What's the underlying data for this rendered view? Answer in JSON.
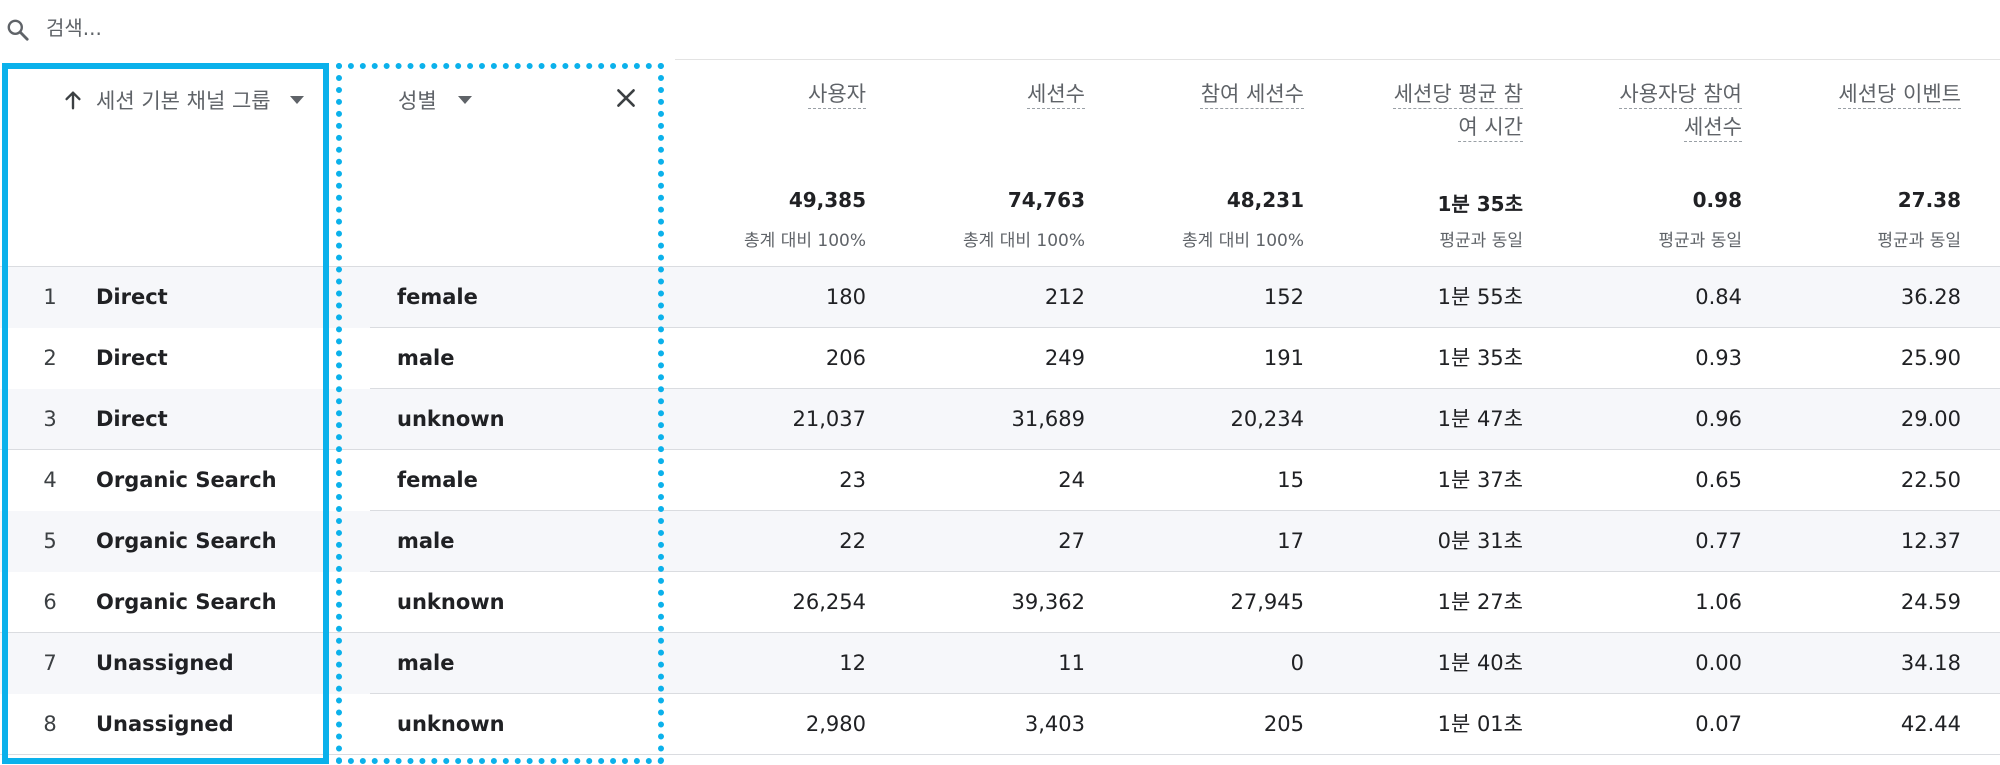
{
  "search": {
    "placeholder": "검색..."
  },
  "dimensions": {
    "primary": {
      "label": "세션 기본 채널 그룹"
    },
    "secondary": {
      "label": "성별"
    }
  },
  "metrics": [
    {
      "label": "사용자",
      "total": "49,385",
      "sub": "총계 대비 100%"
    },
    {
      "label": "세션수",
      "total": "74,763",
      "sub": "총계 대비 100%"
    },
    {
      "label": "참여 세션수",
      "total": "48,231",
      "sub": "총계 대비 100%"
    },
    {
      "label_line1": "세션당 평균 참",
      "label_line2": "여 시간",
      "total": "1분 35초",
      "sub": "평균과 동일"
    },
    {
      "label_line1": "사용자당 참여",
      "label_line2": "세션수",
      "total": "0.98",
      "sub": "평균과 동일"
    },
    {
      "label": "세션당 이벤트",
      "total": "27.38",
      "sub": "평균과 동일"
    }
  ],
  "rows": [
    {
      "index": "1",
      "channel": "Direct",
      "gender": "female",
      "users": "180",
      "sessions": "212",
      "engaged": "152",
      "avg_time": "1분 55초",
      "per_user": "0.84",
      "events": "36.28"
    },
    {
      "index": "2",
      "channel": "Direct",
      "gender": "male",
      "users": "206",
      "sessions": "249",
      "engaged": "191",
      "avg_time": "1분 35초",
      "per_user": "0.93",
      "events": "25.90"
    },
    {
      "index": "3",
      "channel": "Direct",
      "gender": "unknown",
      "users": "21,037",
      "sessions": "31,689",
      "engaged": "20,234",
      "avg_time": "1분 47초",
      "per_user": "0.96",
      "events": "29.00"
    },
    {
      "index": "4",
      "channel": "Organic Search",
      "gender": "female",
      "users": "23",
      "sessions": "24",
      "engaged": "15",
      "avg_time": "1분 37초",
      "per_user": "0.65",
      "events": "22.50"
    },
    {
      "index": "5",
      "channel": "Organic Search",
      "gender": "male",
      "users": "22",
      "sessions": "27",
      "engaged": "17",
      "avg_time": "0분 31초",
      "per_user": "0.77",
      "events": "12.37"
    },
    {
      "index": "6",
      "channel": "Organic Search",
      "gender": "unknown",
      "users": "26,254",
      "sessions": "39,362",
      "engaged": "27,945",
      "avg_time": "1분 27초",
      "per_user": "1.06",
      "events": "24.59"
    },
    {
      "index": "7",
      "channel": "Unassigned",
      "gender": "male",
      "users": "12",
      "sessions": "11",
      "engaged": "0",
      "avg_time": "1분 40초",
      "per_user": "0.00",
      "events": "34.18"
    },
    {
      "index": "8",
      "channel": "Unassigned",
      "gender": "unknown",
      "users": "2,980",
      "sessions": "3,403",
      "engaged": "205",
      "avg_time": "1분 01초",
      "per_user": "0.07",
      "events": "42.44"
    }
  ],
  "colors": {
    "highlight": "#0bb1eb",
    "row_shade": "#f6f7fa",
    "muted_text": "#5f6368"
  },
  "icons": [
    "search-icon",
    "arrow-up-icon",
    "caret-down-icon",
    "close-icon"
  ]
}
